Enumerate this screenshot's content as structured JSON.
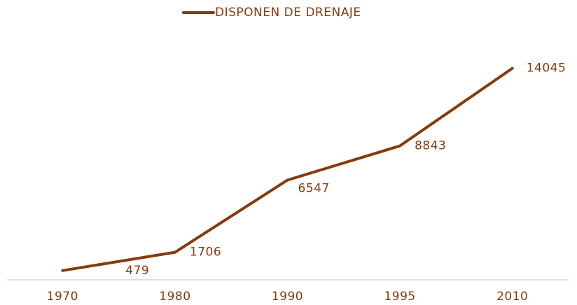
{
  "chart_data": {
    "type": "line",
    "categories": [
      "1970",
      "1980",
      "1990",
      "1995",
      "2010"
    ],
    "series": [
      {
        "name": "DISPONEN DE DRENAJE",
        "color": "#843c0c",
        "values": [
          479,
          1706,
          6547,
          8843,
          14045
        ]
      }
    ],
    "ylim": [
      0,
      16000
    ],
    "legend": "top",
    "data_labels": true
  }
}
